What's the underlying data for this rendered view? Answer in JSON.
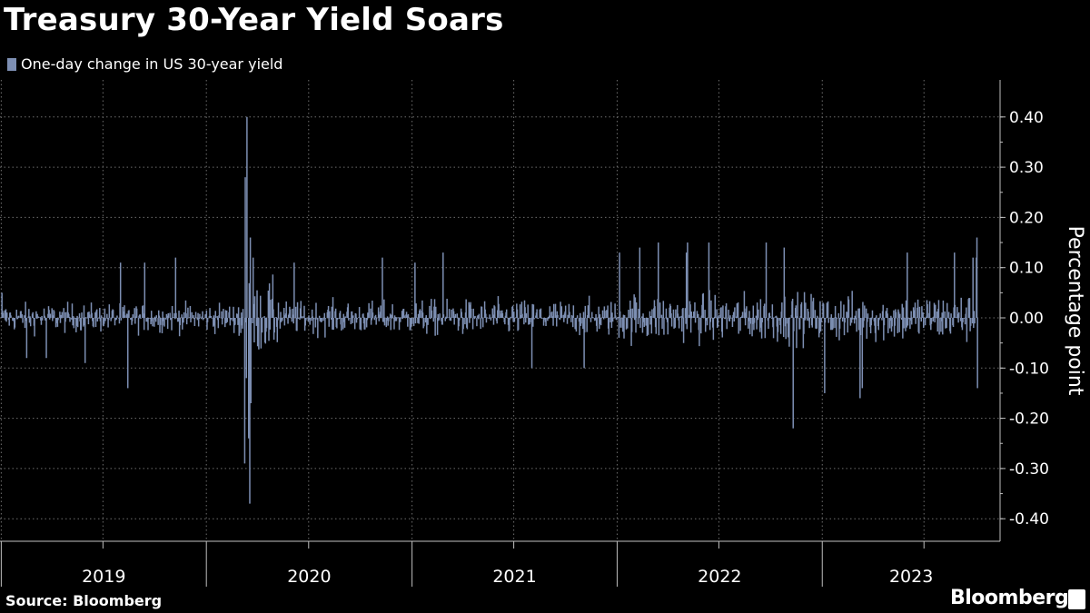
{
  "title": "Treasury 30-Year Yield Soars",
  "source": "Source: Bloomberg",
  "brand": "Bloomberg",
  "colors": {
    "bar": "#7d8fb3",
    "grid": "#6e6e6e",
    "background": "#000000",
    "text": "#ffffff"
  },
  "chart_data": {
    "type": "bar",
    "title": "Treasury 30-Year Yield Soars",
    "legend": "One-day change in US 30-year yield",
    "legend_position": "top-left",
    "ylabel": "Percentage point",
    "xlabel": "",
    "ylim": [
      -0.43,
      0.47
    ],
    "yticks": [
      0.4,
      0.3,
      0.2,
      0.1,
      0.0,
      -0.1,
      -0.2,
      -0.3,
      -0.4
    ],
    "ytick_labels": [
      "0.40",
      "0.30",
      "0.20",
      "0.10",
      "0.00",
      "-0.10",
      "-0.20",
      "-0.30",
      "-0.40"
    ],
    "x_start": "2019-01-02",
    "x_end": "2023-10-04",
    "x_labels": [
      "2019",
      "2020",
      "2021",
      "2022",
      "2023"
    ],
    "grid": true,
    "series": [
      {
        "name": "One-day change in US 30-year yield",
        "x": [
          "2019-01-02",
          "2019-02-15",
          "2019-03-22",
          "2019-05-30",
          "2019-08-01",
          "2019-08-14",
          "2019-09-13",
          "2019-11-07",
          "2020-03-09",
          "2020-03-10",
          "2020-03-12",
          "2020-03-13",
          "2020-03-16",
          "2020-03-18",
          "2020-03-19",
          "2020-03-20",
          "2020-03-24",
          "2020-06-05",
          "2020-11-09",
          "2021-01-06",
          "2021-02-25",
          "2021-08-02",
          "2021-11-03",
          "2022-01-05",
          "2022-02-10",
          "2022-03-15",
          "2022-05-04",
          "2022-05-06",
          "2022-06-13",
          "2022-09-23",
          "2022-10-25",
          "2022-11-10",
          "2023-01-05",
          "2023-03-09",
          "2023-03-13",
          "2023-06-01",
          "2023-08-24",
          "2023-09-26",
          "2023-10-02",
          "2023-10-03",
          "2023-10-04"
        ],
        "values": [
          0.05,
          -0.08,
          -0.08,
          -0.09,
          0.11,
          -0.14,
          0.11,
          0.12,
          -0.29,
          0.28,
          -0.12,
          0.4,
          -0.24,
          -0.37,
          0.16,
          -0.17,
          0.12,
          0.11,
          0.12,
          0.11,
          0.13,
          -0.1,
          -0.1,
          0.13,
          0.14,
          0.15,
          0.13,
          0.15,
          0.15,
          0.15,
          0.14,
          -0.22,
          -0.15,
          -0.16,
          -0.14,
          0.13,
          0.13,
          0.12,
          0.12,
          0.16,
          -0.14
        ]
      }
    ]
  }
}
